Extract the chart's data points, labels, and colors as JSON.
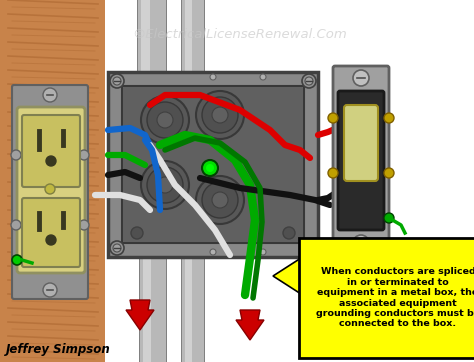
{
  "title_watermark": "©ElectricalLicenseRenewal.Com",
  "author": "Jeffrey Simpson",
  "callout_text": "When conductors are spliced\nin or terminated to\nequipment in a metal box, the\nassociated equipment\ngrounding conductors must be\nconnected to the box.",
  "callout_bg": "#FFFF00",
  "callout_border": "#000000",
  "background_color": "#FFFFFF",
  "wood_color": "#C8834A",
  "wood_stripe": "#9A5520",
  "metal_box_color": "#A0A0A0",
  "metal_box_dark": "#606060",
  "metal_box_inner": "#707070",
  "outlet_body": "#D8D080",
  "outlet_face": "#C8C060",
  "outlet_dark": "#383820",
  "switch_body": "#404040",
  "switch_plate": "#909090",
  "switch_toggle": "#D0D080",
  "conduit_color": "#B8B8B8",
  "conduit_light": "#D8D8D8",
  "conduit_dark": "#808080",
  "wire_red": "#DD0000",
  "wire_black": "#111111",
  "wire_white": "#E0E0E0",
  "wire_green": "#00AA00",
  "wire_blue": "#1166CC",
  "wire_green2": "#007700",
  "green_dot": "#00DD00",
  "arrow_red": "#CC0000"
}
